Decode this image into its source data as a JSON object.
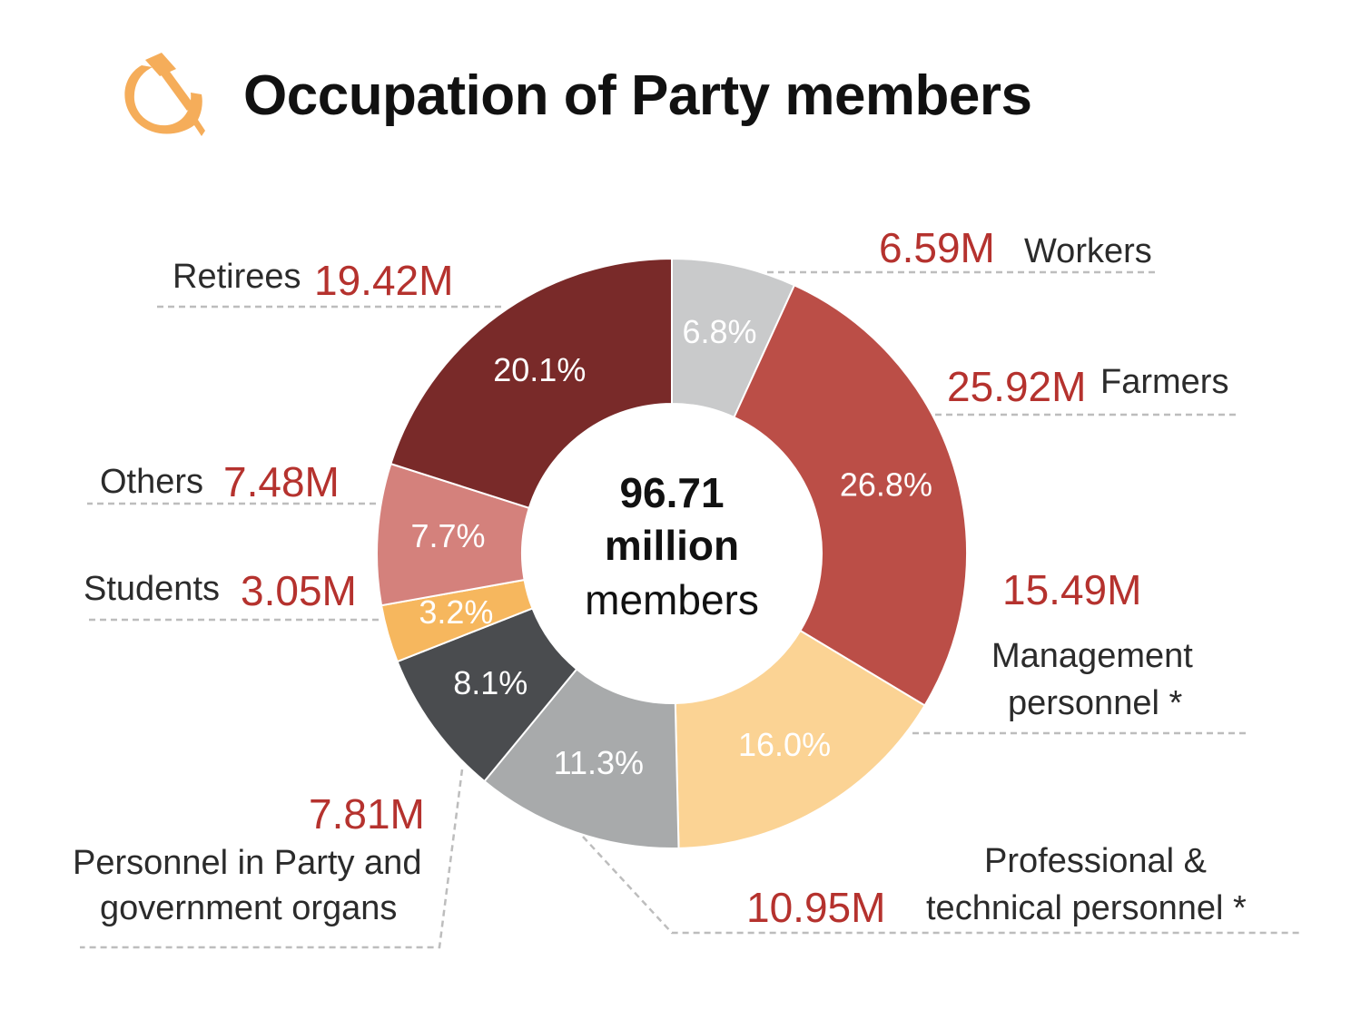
{
  "title": "Occupation of Party members",
  "logo_icon": "hammer-sickle-icon",
  "center": {
    "number": "96.71",
    "unit": "million",
    "word": "members"
  },
  "chart_data": {
    "type": "pie",
    "donut": true,
    "title": "Occupation of Party members",
    "total": "96.71 million members",
    "slices": [
      {
        "name": "Workers",
        "value": 6.59,
        "value_label": "6.59M",
        "percent": "6.8%",
        "color": "#c9cacb",
        "pct_color": "#ffffff"
      },
      {
        "name": "Farmers",
        "value": 25.92,
        "value_label": "25.92M",
        "percent": "26.8%",
        "color": "#bb4e47",
        "pct_color": "#ffffff"
      },
      {
        "name": "Management personnel *",
        "value": 15.49,
        "value_label": "15.49M",
        "percent": "16.0%",
        "color": "#fbd394",
        "pct_color": "#ffffff"
      },
      {
        "name": "Professional & technical personnel *",
        "value": 10.95,
        "value_label": "10.95M",
        "percent": "11.3%",
        "color": "#a8aaab",
        "pct_color": "#ffffff"
      },
      {
        "name": "Personnel in Party and government organs",
        "value": 7.81,
        "value_label": "7.81M",
        "percent": "8.1%",
        "color": "#4a4c4f",
        "pct_color": "#ffffff"
      },
      {
        "name": "Students",
        "value": 3.05,
        "value_label": "3.05M",
        "percent": "3.2%",
        "color": "#f6b75e",
        "pct_color": "#ffffff"
      },
      {
        "name": "Others",
        "value": 7.48,
        "value_label": "7.48M",
        "percent": "7.7%",
        "color": "#d4817c",
        "pct_color": "#ffffff"
      },
      {
        "name": "Retirees",
        "value": 19.42,
        "value_label": "19.42M",
        "percent": "20.1%",
        "color": "#792a29",
        "pct_color": "#ffffff"
      }
    ]
  },
  "labels": {
    "workers": {
      "name": "Workers",
      "value": "6.59M"
    },
    "farmers": {
      "name": "Farmers",
      "value": "25.92M"
    },
    "management": {
      "line1": "Management",
      "line2": "personnel *",
      "value": "15.49M"
    },
    "professional": {
      "line1": "Professional &",
      "line2": "technical personnel *",
      "value": "10.95M"
    },
    "government": {
      "line1": "Personnel in Party and",
      "line2": "government organs",
      "value": "7.81M"
    },
    "students": {
      "name": "Students",
      "value": "3.05M"
    },
    "others": {
      "name": "Others",
      "value": "7.48M"
    },
    "retirees": {
      "name": "Retirees",
      "value": "19.42M"
    }
  }
}
